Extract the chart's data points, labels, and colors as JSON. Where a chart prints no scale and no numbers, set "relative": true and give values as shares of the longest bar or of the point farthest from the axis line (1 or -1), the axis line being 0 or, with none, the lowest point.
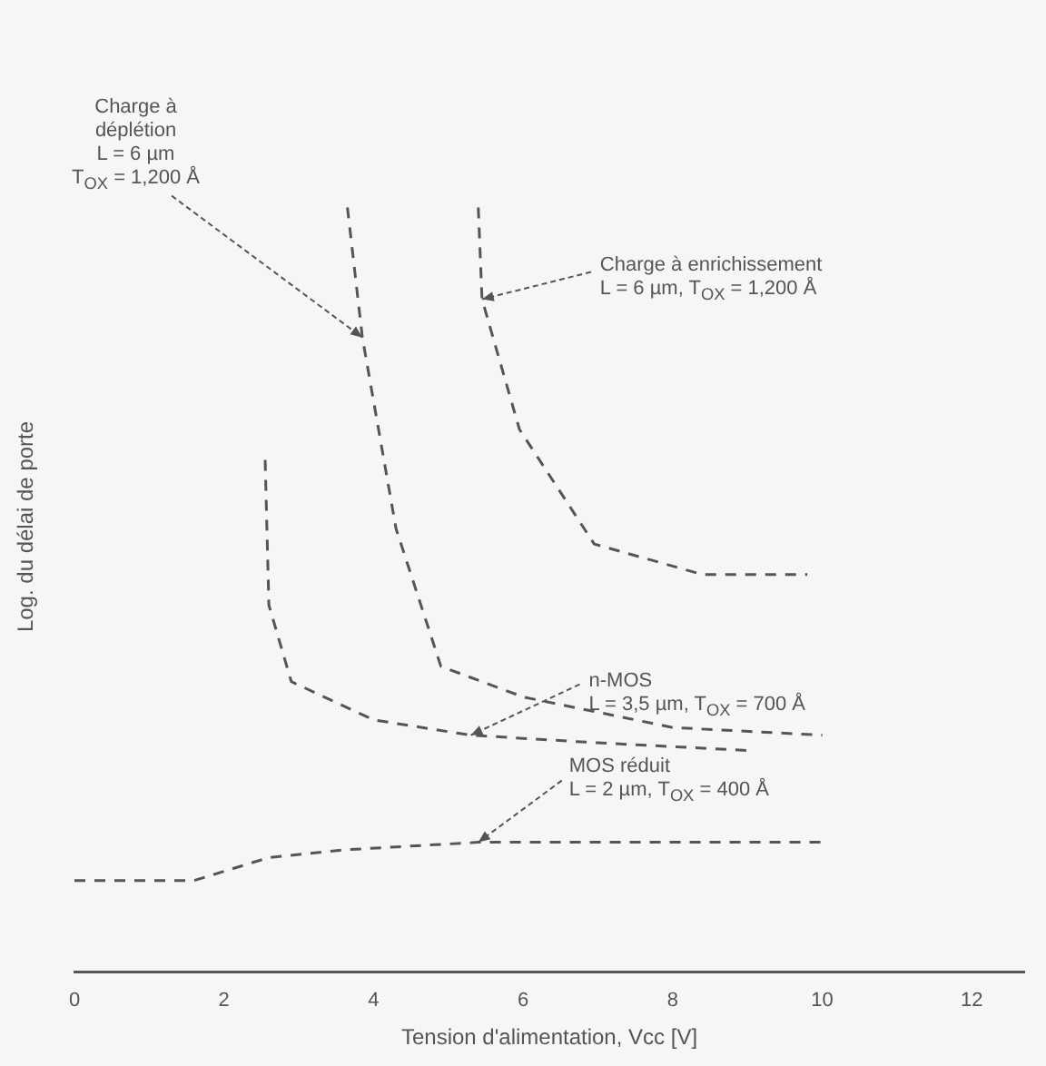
{
  "chart_data": {
    "type": "line",
    "relative": true,
    "xlabel": "Tension d'alimentation, Vcc [V]",
    "ylabel": "Log. du délai de porte",
    "xlim": [
      0,
      12.7
    ],
    "xticks": [
      0,
      2,
      4,
      6,
      8,
      10,
      12
    ],
    "grid": false,
    "legend": false,
    "marker": "none",
    "line_style": "dashed",
    "series": [
      {
        "color": "#555555",
        "x": [
          3.65,
          3.85,
          4.3,
          4.9,
          6,
          8,
          10
        ],
        "values": [
          1.0,
          0.83,
          0.58,
          0.4,
          0.36,
          0.32,
          0.31
        ]
      },
      {
        "color": "#555555",
        "x": [
          5.4,
          5.45,
          5.95,
          6.35,
          6.95,
          8.4,
          9.8
        ],
        "values": [
          1.0,
          0.88,
          0.71,
          0.65,
          0.56,
          0.52,
          0.52
        ]
      },
      {
        "color": "#555555",
        "x": [
          2.55,
          2.6,
          2.9,
          4,
          5.3,
          7,
          9
        ],
        "values": [
          0.67,
          0.48,
          0.38,
          0.33,
          0.31,
          0.3,
          0.29
        ]
      },
      {
        "color": "#555555",
        "x": [
          0,
          1.6,
          2.6,
          3.6,
          5.4,
          8,
          10
        ],
        "values": [
          0.12,
          0.12,
          0.15,
          0.16,
          0.17,
          0.17,
          0.17
        ]
      }
    ],
    "annotations": [
      {
        "text": "Charge à\ndéplétion\nL = 6 µm\nT$_{OX}$ = 1,200 Å",
        "x": 3.85,
        "y": 0.83
      },
      {
        "text": "Charge à enrichissement\nL = 6 µm, T$_{OX}$ = 1,200 Å",
        "x": 5.45,
        "y": 0.88
      },
      {
        "text": "n-MOS\nL = 3,5 µm, T$_{OX}$ = 700 Å",
        "x": 5.3,
        "y": 0.31
      },
      {
        "text": "MOS réduit\nL = 2 µm, T$_{OX}$ = 400 Å",
        "x": 5.4,
        "y": 0.17
      }
    ]
  }
}
